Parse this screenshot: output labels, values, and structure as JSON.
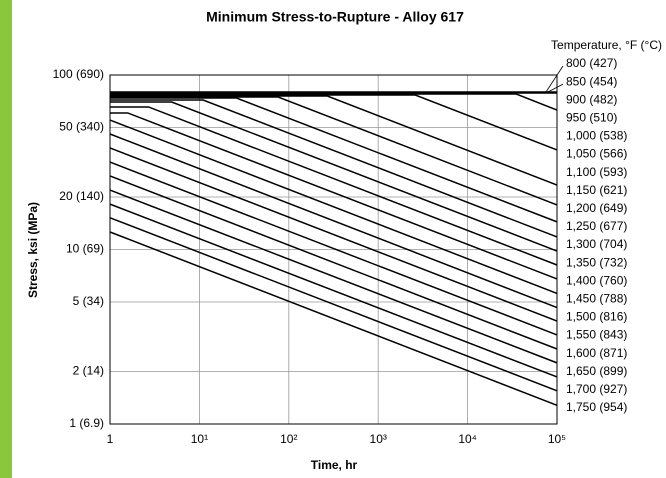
{
  "chart_data": {
    "type": "line",
    "title": "Minimum Stress-to-Rupture - Alloy 617",
    "xlabel": "Time, hr",
    "ylabel": "Stress, ksi (MPa)",
    "legend_title": "Temperature, °F (°C)",
    "log_x": true,
    "log_y": true,
    "grid": true,
    "color": "#000000",
    "xlim": [
      1,
      100000
    ],
    "xticks": [
      1,
      {
        "value": 10,
        "label": "10¹"
      },
      {
        "value": 100,
        "label": "10²"
      },
      {
        "value": 1000,
        "label": "10³"
      },
      {
        "value": 10000,
        "label": "10⁴"
      },
      {
        "value": 100000,
        "label": "10⁵"
      }
    ],
    "ylim": [
      1,
      100
    ],
    "yticks": [
      {
        "value": 1,
        "label": "1 (6.9)"
      },
      {
        "value": 2,
        "label": "2 (14)"
      },
      {
        "value": 5,
        "label": "5 (34)"
      },
      {
        "value": 10,
        "label": "10 (69)"
      },
      {
        "value": 20,
        "label": "20 (140)"
      },
      {
        "value": 50,
        "label": "50 (340)"
      },
      {
        "value": 100,
        "label": "100 (690)"
      }
    ],
    "series": [
      {
        "name": "800 (427)",
        "x": [
          1,
          100000
        ],
        "values": [
          79.9,
          79.9
        ]
      },
      {
        "name": "850 (454)",
        "x": [
          1,
          100000
        ],
        "values": [
          78.9,
          78.9
        ]
      },
      {
        "name": "900 (482)",
        "x": [
          1,
          35000,
          100000
        ],
        "values": [
          77.8,
          77.8,
          63.0
        ]
      },
      {
        "name": "950 (510)",
        "x": [
          1,
          2600,
          100000
        ],
        "values": [
          76.8,
          76.8,
          37.2
        ]
      },
      {
        "name": "1,000 (538)",
        "x": [
          1,
          270,
          100000
        ],
        "values": [
          75.8,
          75.8,
          23.4
        ]
      },
      {
        "name": "1,050 (566)",
        "x": [
          1,
          76,
          100000
        ],
        "values": [
          74.8,
          74.8,
          18.0
        ]
      },
      {
        "name": "1,100 (593)",
        "x": [
          1,
          26,
          100000
        ],
        "values": [
          73.8,
          73.8,
          14.4
        ]
      },
      {
        "name": "1,150 (621)",
        "x": [
          1,
          11,
          100000
        ],
        "values": [
          71.9,
          71.9,
          11.8
        ]
      },
      {
        "name": "1,200 (649)",
        "x": [
          1,
          4.9,
          100000
        ],
        "values": [
          70.0,
          70.0,
          9.8
        ]
      },
      {
        "name": "1,250 (677)",
        "x": [
          1,
          2.7,
          100000
        ],
        "values": [
          65.6,
          65.6,
          8.15
        ]
      },
      {
        "name": "1,300 (704)",
        "x": [
          1,
          1.58,
          100000
        ],
        "values": [
          60.6,
          60.6,
          6.78
        ]
      },
      {
        "name": "1,350 (732)",
        "x": [
          1,
          100000
        ],
        "values": [
          55.2,
          5.6
        ]
      },
      {
        "name": "1,400 (760)",
        "x": [
          1,
          100000
        ],
        "values": [
          45.9,
          4.65
        ]
      },
      {
        "name": "1,450 (788)",
        "x": [
          1,
          100000
        ],
        "values": [
          38.2,
          3.89
        ]
      },
      {
        "name": "1,500 (816)",
        "x": [
          1,
          100000
        ],
        "values": [
          31.7,
          3.24
        ]
      },
      {
        "name": "1,550 (843)",
        "x": [
          1,
          100000
        ],
        "values": [
          26.4,
          2.69
        ]
      },
      {
        "name": "1,600 (871)",
        "x": [
          1,
          100000
        ],
        "values": [
          21.9,
          2.24
        ]
      },
      {
        "name": "1,650 (899)",
        "x": [
          1,
          100000
        ],
        "values": [
          18.2,
          1.86
        ]
      },
      {
        "name": "1,700 (927)",
        "x": [
          1,
          100000
        ],
        "values": [
          15.2,
          1.55
        ]
      },
      {
        "name": "1,750 (954)",
        "x": [
          1,
          100000
        ],
        "values": [
          12.6,
          1.28
        ]
      }
    ]
  }
}
